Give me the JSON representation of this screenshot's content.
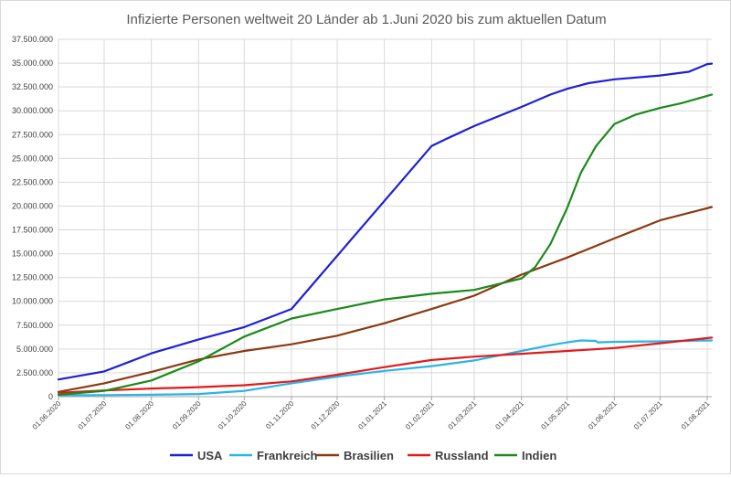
{
  "chart_data": {
    "type": "line",
    "title": "Infizierte Personen weltweit 20 Länder ab 1.Juni 2020 bis zum aktuellen Datum",
    "xlabel": "",
    "ylabel": "",
    "ylim": [
      0,
      37500000
    ],
    "y_tick_step": 2500000,
    "y_tick_labels": [
      "0",
      "2.500.000",
      "5.000.000",
      "7.500.000",
      "10.000.000",
      "12.500.000",
      "15.000.000",
      "17.500.000",
      "20.000.000",
      "22.500.000",
      "25.000.000",
      "27.500.000",
      "30.000.000",
      "32.500.000",
      "35.000.000",
      "37.500.000"
    ],
    "x_tick_labels": [
      "01.06.2020",
      "01.07.2020",
      "01.08.2020",
      "01.09.2020",
      "01.10.2020",
      "01.11.2020",
      "01.12.2020",
      "01.01.2021",
      "01.02.2021",
      "01.03.2021",
      "01.04.2021",
      "01.05.2021",
      "01.06.2021",
      "01.07.2021",
      "01.08.2021"
    ],
    "x_range": [
      "2020-06-01",
      "2021-08-04"
    ],
    "grid": true,
    "legend_position": "bottom",
    "series": [
      {
        "name": "USA",
        "color": "#1f1fd6",
        "x": [
          "2020-06-01",
          "2020-07-01",
          "2020-08-01",
          "2020-09-01",
          "2020-10-01",
          "2020-11-01",
          "2021-02-01",
          "2021-02-10",
          "2021-03-01",
          "2021-04-01",
          "2021-04-20",
          "2021-05-01",
          "2021-05-15",
          "2021-06-01",
          "2021-07-01",
          "2021-07-20",
          "2021-08-01",
          "2021-08-04"
        ],
        "values": [
          1800000,
          2650000,
          4550000,
          6000000,
          7300000,
          9200000,
          26300000,
          27000000,
          28400000,
          30400000,
          31700000,
          32300000,
          32900000,
          33300000,
          33700000,
          34100000,
          34900000,
          34950000
        ]
      },
      {
        "name": "Frankreich",
        "color": "#2ab4e8",
        "x": [
          "2020-06-01",
          "2020-07-01",
          "2020-08-01",
          "2020-09-01",
          "2020-10-01",
          "2020-11-01",
          "2020-12-01",
          "2021-01-01",
          "2021-02-01",
          "2021-03-01",
          "2021-04-01",
          "2021-04-20",
          "2021-05-01",
          "2021-05-10",
          "2021-05-20",
          "2021-05-21",
          "2021-06-01",
          "2021-07-01",
          "2021-07-15",
          "2021-08-04"
        ],
        "values": [
          150000,
          160000,
          200000,
          280000,
          600000,
          1400000,
          2100000,
          2700000,
          3200000,
          3800000,
          4800000,
          5400000,
          5700000,
          5900000,
          5850000,
          5700000,
          5750000,
          5800000,
          5850000,
          5900000
        ]
      },
      {
        "name": "Brasilien",
        "color": "#8b3a0f",
        "x": [
          "2020-06-01",
          "2020-07-01",
          "2020-08-01",
          "2020-09-01",
          "2020-10-01",
          "2020-11-01",
          "2020-12-01",
          "2021-01-01",
          "2021-02-01",
          "2021-03-01",
          "2021-04-01",
          "2021-05-01",
          "2021-06-01",
          "2021-07-01",
          "2021-08-04"
        ],
        "values": [
          500000,
          1400000,
          2600000,
          3900000,
          4800000,
          5500000,
          6400000,
          7700000,
          9200000,
          10600000,
          12800000,
          14600000,
          16600000,
          18500000,
          19900000
        ]
      },
      {
        "name": "Russland",
        "color": "#e31a1a",
        "x": [
          "2020-06-01",
          "2020-07-01",
          "2020-08-01",
          "2020-09-01",
          "2020-10-01",
          "2020-11-01",
          "2020-12-01",
          "2021-01-01",
          "2021-02-01",
          "2021-03-01",
          "2021-04-01",
          "2021-05-01",
          "2021-06-01",
          "2021-07-01",
          "2021-08-04"
        ],
        "values": [
          400000,
          650000,
          850000,
          1000000,
          1200000,
          1600000,
          2300000,
          3100000,
          3850000,
          4200000,
          4500000,
          4800000,
          5100000,
          5600000,
          6200000
        ]
      },
      {
        "name": "Indien",
        "color": "#1a8a1a",
        "x": [
          "2020-06-01",
          "2020-07-01",
          "2020-08-01",
          "2020-09-01",
          "2020-10-01",
          "2020-11-01",
          "2020-12-01",
          "2021-01-01",
          "2021-02-01",
          "2021-03-01",
          "2021-04-01",
          "2021-04-10",
          "2021-04-20",
          "2021-05-01",
          "2021-05-10",
          "2021-05-20",
          "2021-06-01",
          "2021-06-15",
          "2021-07-01",
          "2021-07-15",
          "2021-08-04"
        ],
        "values": [
          200000,
          600000,
          1700000,
          3700000,
          6300000,
          8200000,
          9200000,
          10200000,
          10800000,
          11200000,
          12400000,
          13600000,
          16000000,
          19800000,
          23500000,
          26300000,
          28600000,
          29600000,
          30300000,
          30800000,
          31700000
        ]
      }
    ]
  }
}
